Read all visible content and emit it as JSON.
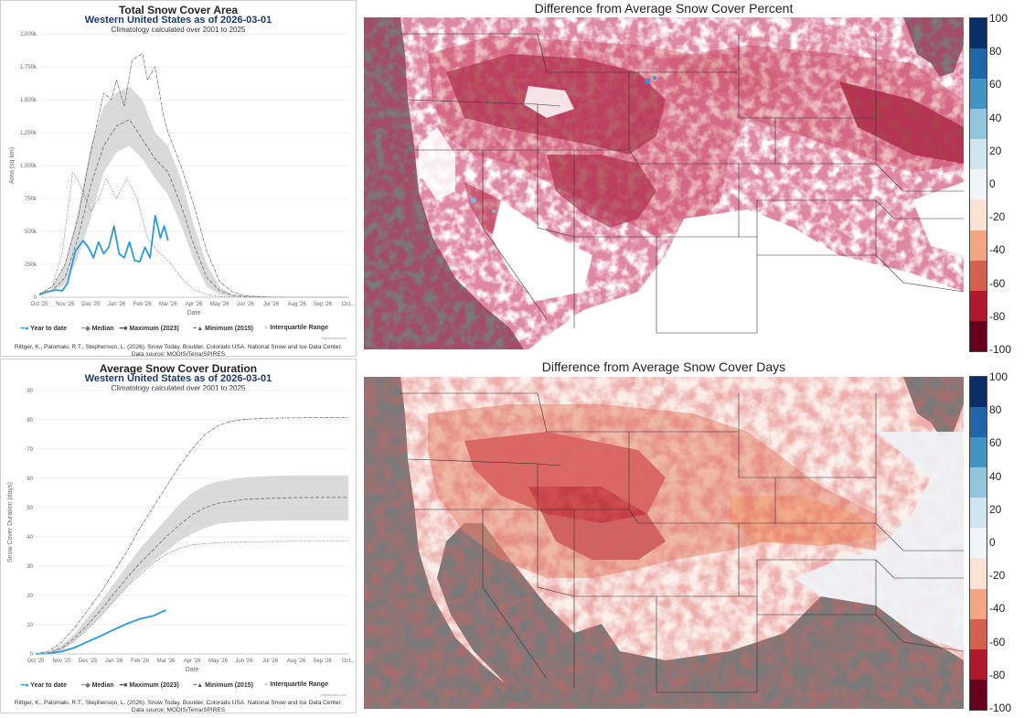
{
  "area_panel": {
    "title": "Total Snow Cover Area",
    "subtitle": "Western United States as of 2026-03-01",
    "note": "Climatology calculated over 2001 to 2025",
    "credit_line1": "Rittger, K., Palomaki, R.T., Stephenson, L. (2026). Snow Today. Boulder, Colorado USA. National Snow and Ice Data Center.",
    "credit_line2": "Data source: MODIS/Terra/SPIRES",
    "highcharts": "Highcharts.com",
    "legend": {
      "ytd": "Year to date",
      "median": "Median",
      "max": "Maximum (2023)",
      "min": "Minimum (2015)",
      "iqr": "Interquartile Range"
    }
  },
  "duration_panel": {
    "title": "Average Snow Cover Duration",
    "subtitle": "Western United States as of 2026-03-01",
    "note": "Climatology calculated over 2001 to 2025",
    "credit_line1": "Rittger, K., Palomaki, R.T., Stephenson, L. (2026). Snow Today. Boulder, Colorado USA. National Snow and Ice Data Center.",
    "credit_line2": "Data source: MODIS/Terra/SPIRES",
    "highcharts": "Highcharts.com",
    "legend": {
      "ytd": "Year to date",
      "median": "Median",
      "max": "Maximum (2023)",
      "min": "Minimum (2015)",
      "iqr": "Interquartile Range"
    }
  },
  "maps": {
    "top_title": "Difference from Average Snow Cover Percent",
    "bottom_title": "Difference from Average Snow Cover Days",
    "colorbar_labels": [
      "100",
      "80",
      "60",
      "40",
      "20",
      "0",
      "-20",
      "-40",
      "-60",
      "-80",
      "-100"
    ],
    "colorbar_colors": [
      "#0a2f66",
      "#2166ac",
      "#4393c3",
      "#92c5de",
      "#d1e5f0",
      "#f0f4f7",
      "#fbe2d6",
      "#f4a582",
      "#d6604d",
      "#b2182b",
      "#67001f"
    ]
  },
  "chart_data": [
    {
      "type": "line",
      "title": "Total Snow Cover Area",
      "xlabel": "Date",
      "ylabel": "Area (sq km)",
      "categories": [
        "Oct '25",
        "Nov '25",
        "Dec '25",
        "Jan '26",
        "Feb '26",
        "Mar '26",
        "Apr '26",
        "May '26",
        "Jun '26",
        "Jul '26",
        "Aug '26",
        "Sep '26",
        "Oct..."
      ],
      "yticks": [
        "0",
        "250k",
        "500k",
        "750k",
        "1,000k",
        "1,250k",
        "1,500k",
        "1,750k",
        "2,000k"
      ],
      "ylim": [
        0,
        2000000
      ],
      "x_months": [
        0,
        0.5,
        1,
        1.5,
        2,
        2.5,
        3,
        3.5,
        4,
        4.5,
        5,
        5.5,
        6,
        6.5,
        7,
        7.5,
        8,
        8.5,
        9,
        10,
        11,
        12
      ],
      "series": [
        {
          "name": "Year to date",
          "color": "#2b9ad6",
          "x": [
            0,
            0.3,
            0.6,
            0.9,
            1.1,
            1.4,
            1.7,
            1.9,
            2.1,
            2.3,
            2.5,
            2.7,
            2.9,
            3.1,
            3.3,
            3.5,
            3.7,
            3.9,
            4.1,
            4.3,
            4.5,
            4.7,
            4.85,
            5.0
          ],
          "y": [
            20000,
            40000,
            55000,
            50000,
            110000,
            350000,
            430000,
            380000,
            300000,
            420000,
            330000,
            380000,
            540000,
            330000,
            300000,
            420000,
            280000,
            270000,
            380000,
            300000,
            620000,
            450000,
            540000,
            430000
          ]
        },
        {
          "name": "Median",
          "color": "#777777",
          "x": [
            0,
            0.5,
            1,
            1.5,
            2,
            2.5,
            3,
            3.5,
            4,
            4.5,
            5,
            5.5,
            6,
            6.5,
            7,
            7.5,
            8,
            8.5,
            9,
            10,
            11,
            12
          ],
          "y": [
            20000,
            50000,
            150000,
            450000,
            850000,
            1150000,
            1300000,
            1350000,
            1200000,
            1050000,
            950000,
            700000,
            400000,
            150000,
            50000,
            15000,
            5000,
            2000,
            1000,
            500,
            500,
            500
          ]
        },
        {
          "name": "Maximum (2023)",
          "color": "#555555",
          "x": [
            0,
            0.5,
            1,
            1.5,
            2,
            2.5,
            2.8,
            3,
            3.3,
            3.6,
            4,
            4.2,
            4.5,
            4.8,
            5,
            5.5,
            6,
            6.5,
            7,
            7.5,
            8,
            9,
            10,
            12
          ],
          "y": [
            25000,
            80000,
            250000,
            600000,
            1100000,
            1550000,
            1500000,
            1650000,
            1450000,
            1800000,
            1850000,
            1650000,
            1750000,
            1400000,
            1250000,
            1000000,
            700000,
            350000,
            120000,
            40000,
            10000,
            2000,
            1000,
            500
          ]
        },
        {
          "name": "Minimum (2015)",
          "color": "#555555",
          "x": [
            0,
            0.5,
            0.9,
            1.3,
            1.6,
            2,
            2.3,
            2.6,
            3,
            3.4,
            3.8,
            4.2,
            4.6,
            5,
            5.5,
            6,
            6.5,
            7,
            8,
            12
          ],
          "y": [
            15000,
            80000,
            350000,
            950000,
            850000,
            650000,
            750000,
            900000,
            750000,
            900000,
            750000,
            450000,
            350000,
            280000,
            150000,
            60000,
            20000,
            5000,
            1000,
            500
          ]
        }
      ],
      "iqr": {
        "x": [
          0.5,
          1,
          1.5,
          2,
          2.5,
          3,
          3.5,
          4,
          4.5,
          5,
          5.5,
          6,
          6.5,
          7,
          7.5,
          8
        ],
        "low": [
          40000,
          100000,
          300000,
          600000,
          950000,
          1100000,
          1150000,
          1050000,
          900000,
          780000,
          550000,
          280000,
          80000,
          20000,
          5000,
          1000
        ],
        "high": [
          70000,
          250000,
          650000,
          1150000,
          1450000,
          1550000,
          1600000,
          1500000,
          1250000,
          1150000,
          900000,
          550000,
          250000,
          80000,
          20000,
          3000
        ]
      },
      "legend": "bottom"
    },
    {
      "type": "line",
      "title": "Average Snow Cover Duration",
      "xlabel": "Date",
      "ylabel": "Snow Cover Duration (days)",
      "categories": [
        "Oct '25",
        "Nov '25",
        "Dec '25",
        "Jan '26",
        "Feb '26",
        "Mar '26",
        "Apr '26",
        "May '26",
        "Jun '26",
        "Jul '26",
        "Aug '26",
        "Sep '26",
        "Oct..."
      ],
      "yticks": [
        "0",
        "10",
        "20",
        "30",
        "40",
        "50",
        "60",
        "70",
        "80",
        "90"
      ],
      "ylim": [
        0,
        90
      ],
      "series": [
        {
          "name": "Year to date",
          "color": "#2b9ad6",
          "x": [
            0,
            0.5,
            1,
            1.5,
            2,
            2.5,
            3,
            3.5,
            4,
            4.5,
            5
          ],
          "y": [
            0,
            0.2,
            0.8,
            2.2,
            4.2,
            6.2,
            8.3,
            10.3,
            12.0,
            13.0,
            15.0
          ]
        },
        {
          "name": "Median",
          "color": "#777777",
          "x": [
            0,
            0.5,
            1,
            1.5,
            2,
            2.5,
            3,
            3.5,
            4,
            4.5,
            5,
            5.5,
            6,
            6.5,
            7,
            8,
            9,
            10,
            11,
            12
          ],
          "y": [
            0,
            0.5,
            2,
            5.5,
            10,
            15,
            20.5,
            26,
            31,
            35.5,
            40,
            44,
            47.5,
            50,
            51.5,
            52.8,
            53.2,
            53.4,
            53.5,
            53.5
          ]
        },
        {
          "name": "Maximum (2023)",
          "color": "#555555",
          "x": [
            0,
            0.5,
            1,
            1.5,
            2,
            2.5,
            3,
            3.5,
            4,
            4.5,
            5,
            5.5,
            6,
            6.5,
            7,
            7.5,
            8,
            9,
            10,
            11,
            12
          ],
          "y": [
            0,
            1,
            4,
            9,
            15,
            21,
            28,
            35,
            43,
            50,
            57,
            64,
            70,
            75,
            78,
            79.5,
            80.2,
            80.6,
            80.7,
            80.8,
            80.8
          ]
        },
        {
          "name": "Minimum (2015)",
          "color": "#555555",
          "x": [
            0,
            0.5,
            1,
            1.5,
            2,
            2.5,
            3,
            3.5,
            4,
            4.5,
            5,
            5.5,
            6,
            7,
            8,
            9,
            10,
            11,
            12
          ],
          "y": [
            0,
            0.3,
            1.5,
            4.5,
            8.5,
            13,
            18,
            23,
            27,
            31,
            34,
            36,
            37.3,
            38,
            38.3,
            38.4,
            38.5,
            38.5,
            38.5
          ]
        }
      ],
      "iqr": {
        "x": [
          0.5,
          1,
          1.5,
          2,
          2.5,
          3,
          3.5,
          4,
          4.5,
          5,
          5.5,
          6,
          6.5,
          7,
          8,
          9,
          10,
          11,
          12
        ],
        "low": [
          0.3,
          1.5,
          4.5,
          8.5,
          13,
          18,
          23,
          27.5,
          31.5,
          35,
          38.5,
          41,
          43,
          44.5,
          45.3,
          45.5,
          45.6,
          45.6,
          45.6
        ],
        "high": [
          0.8,
          3,
          7,
          12.5,
          18,
          24,
          30,
          36,
          41,
          46,
          51,
          55,
          57.5,
          59,
          60.3,
          60.8,
          61,
          61,
          61
        ]
      },
      "legend": "bottom"
    }
  ]
}
